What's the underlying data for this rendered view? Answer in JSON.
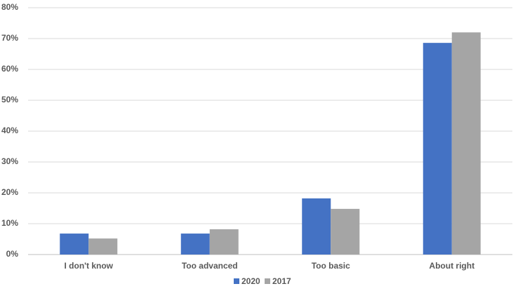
{
  "chart_data": {
    "type": "bar",
    "categories": [
      "I don't know",
      "Too advanced",
      "Too basic",
      "About right"
    ],
    "series": [
      {
        "name": "2020",
        "color": "#4472c4",
        "values": [
          6.8,
          6.8,
          18.2,
          68.6
        ]
      },
      {
        "name": "2017",
        "color": "#a5a5a5",
        "values": [
          5.2,
          8.2,
          14.8,
          72.0
        ]
      }
    ],
    "ylim": [
      0,
      80
    ],
    "yticks": [
      {
        "value": 0,
        "label": "0%"
      },
      {
        "value": 10,
        "label": "10%"
      },
      {
        "value": 20,
        "label": "20%"
      },
      {
        "value": 30,
        "label": "30%"
      },
      {
        "value": 40,
        "label": "40%"
      },
      {
        "value": 50,
        "label": "50%"
      },
      {
        "value": 60,
        "label": "60%"
      },
      {
        "value": 70,
        "label": "70%"
      },
      {
        "value": 80,
        "label": "80%"
      }
    ],
    "grid": true,
    "legend": "bottom"
  }
}
